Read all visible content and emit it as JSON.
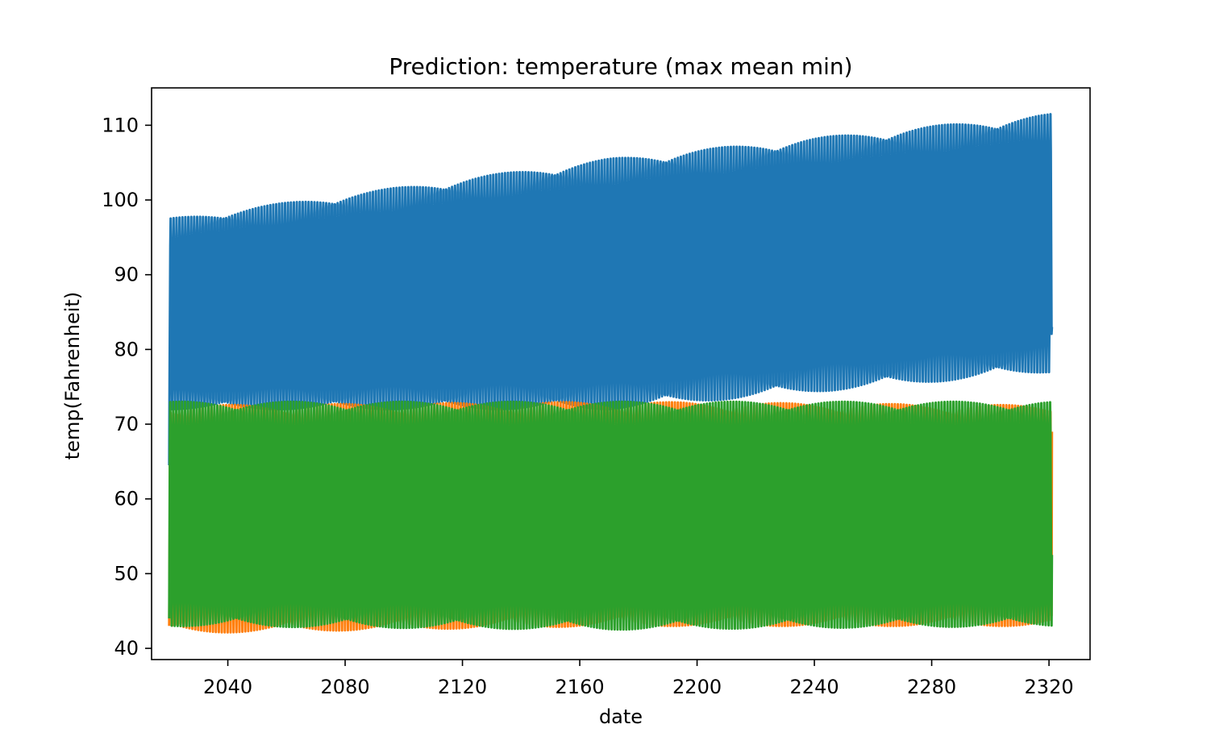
{
  "chart_data": {
    "type": "line",
    "title": "Prediction: temperature (max mean min)",
    "xlabel": "date",
    "ylabel": "temp(Fahrenheit)",
    "xlim": [
      2014,
      2334
    ],
    "ylim": [
      38.5,
      115
    ],
    "x_ticks": [
      2040,
      2080,
      2120,
      2160,
      2200,
      2240,
      2280,
      2320
    ],
    "y_ticks": [
      40,
      50,
      60,
      70,
      80,
      90,
      100,
      110
    ],
    "x_range": [
      2020,
      2321
    ],
    "grid": false,
    "legend": "none",
    "series": [
      {
        "color": "#1f77b4",
        "start_value": 64.5,
        "end_value": 83,
        "envelope_x": [
          2020,
          2170,
          2321
        ],
        "upper": [
          97.5,
          105.5,
          111.5
        ],
        "lower": [
          72,
          72,
          77
        ]
      },
      {
        "color": "#ff7f0e",
        "start_value": 43,
        "end_value": 69,
        "envelope_x": [
          2020,
          2170,
          2321
        ],
        "upper": [
          72.5,
          73,
          72.5
        ],
        "lower": [
          42,
          43,
          43
        ]
      },
      {
        "color": "#2ca02c",
        "start_value": 44,
        "end_value": 52.5,
        "envelope_x": [
          2020,
          2170,
          2321
        ],
        "upper": [
          73,
          73,
          73
        ],
        "lower": [
          43,
          42.5,
          43
        ]
      }
    ]
  }
}
